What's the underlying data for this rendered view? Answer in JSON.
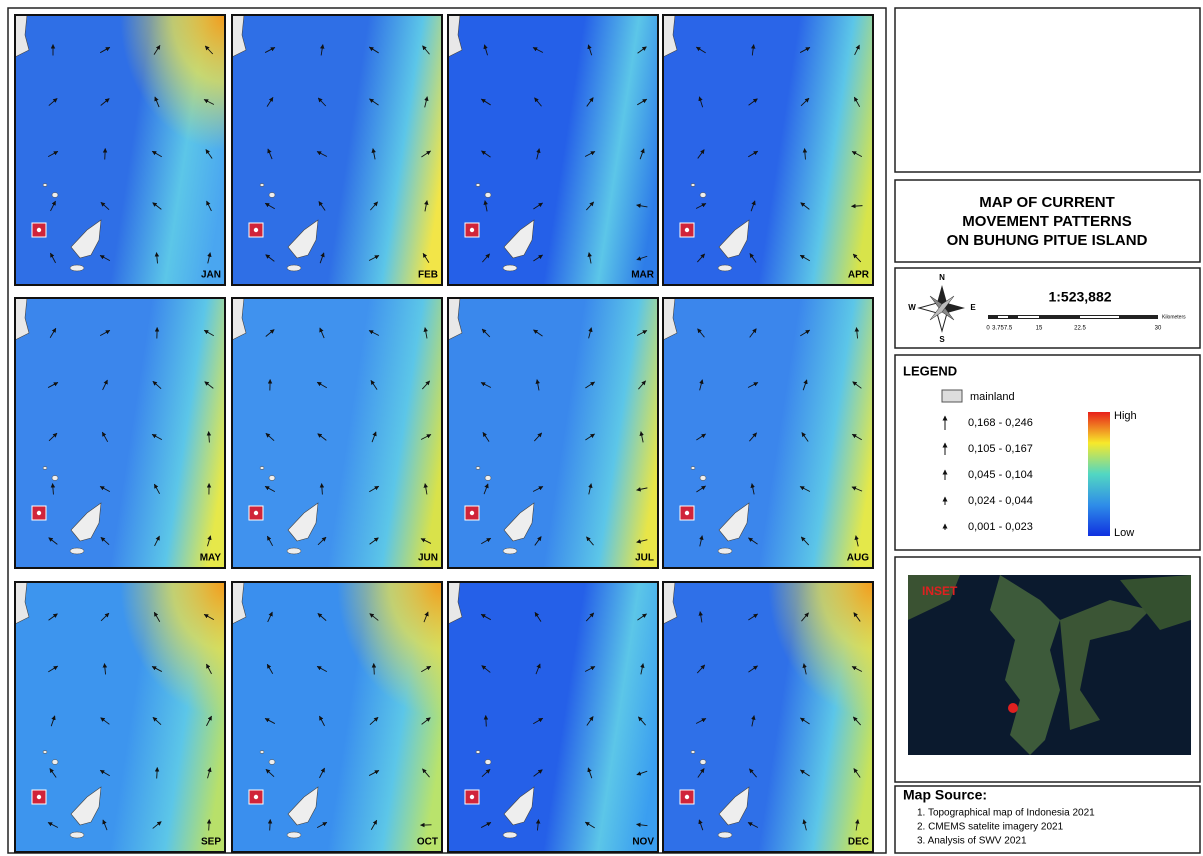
{
  "months": [
    "JAN",
    "FEB",
    "MAR",
    "APR",
    "MAY",
    "JUN",
    "JUL",
    "AUG",
    "SEP",
    "OCT",
    "NOV",
    "DEC"
  ],
  "title": [
    "MAP OF CURRENT",
    "MOVEMENT PATTERNS",
    "ON BUHUNG PITUE ISLAND"
  ],
  "compass": {
    "n": "N",
    "s": "S",
    "e": "E",
    "w": "W"
  },
  "scale": {
    "ratio": "1:523,882",
    "ticks": [
      "0",
      "3.75",
      "7.5",
      "15",
      "22.5",
      "30"
    ],
    "unit": "Kilometers"
  },
  "legend": {
    "title": "LEGEND",
    "mainland": "mainland",
    "classes": [
      "0,168 - 0,246",
      "0,105 - 0,167",
      "0,045 - 0,104",
      "0,024 - 0,044",
      "0,001 - 0,023"
    ],
    "high": "High",
    "low": "Low"
  },
  "inset": {
    "label": "INSET"
  },
  "source": {
    "title": "Map Source:",
    "items": [
      "1. Topographical map of Indonesia 2021",
      "2. CMEMS satelite imagery 2021",
      "3. Analysis of SWV 2021"
    ]
  }
}
